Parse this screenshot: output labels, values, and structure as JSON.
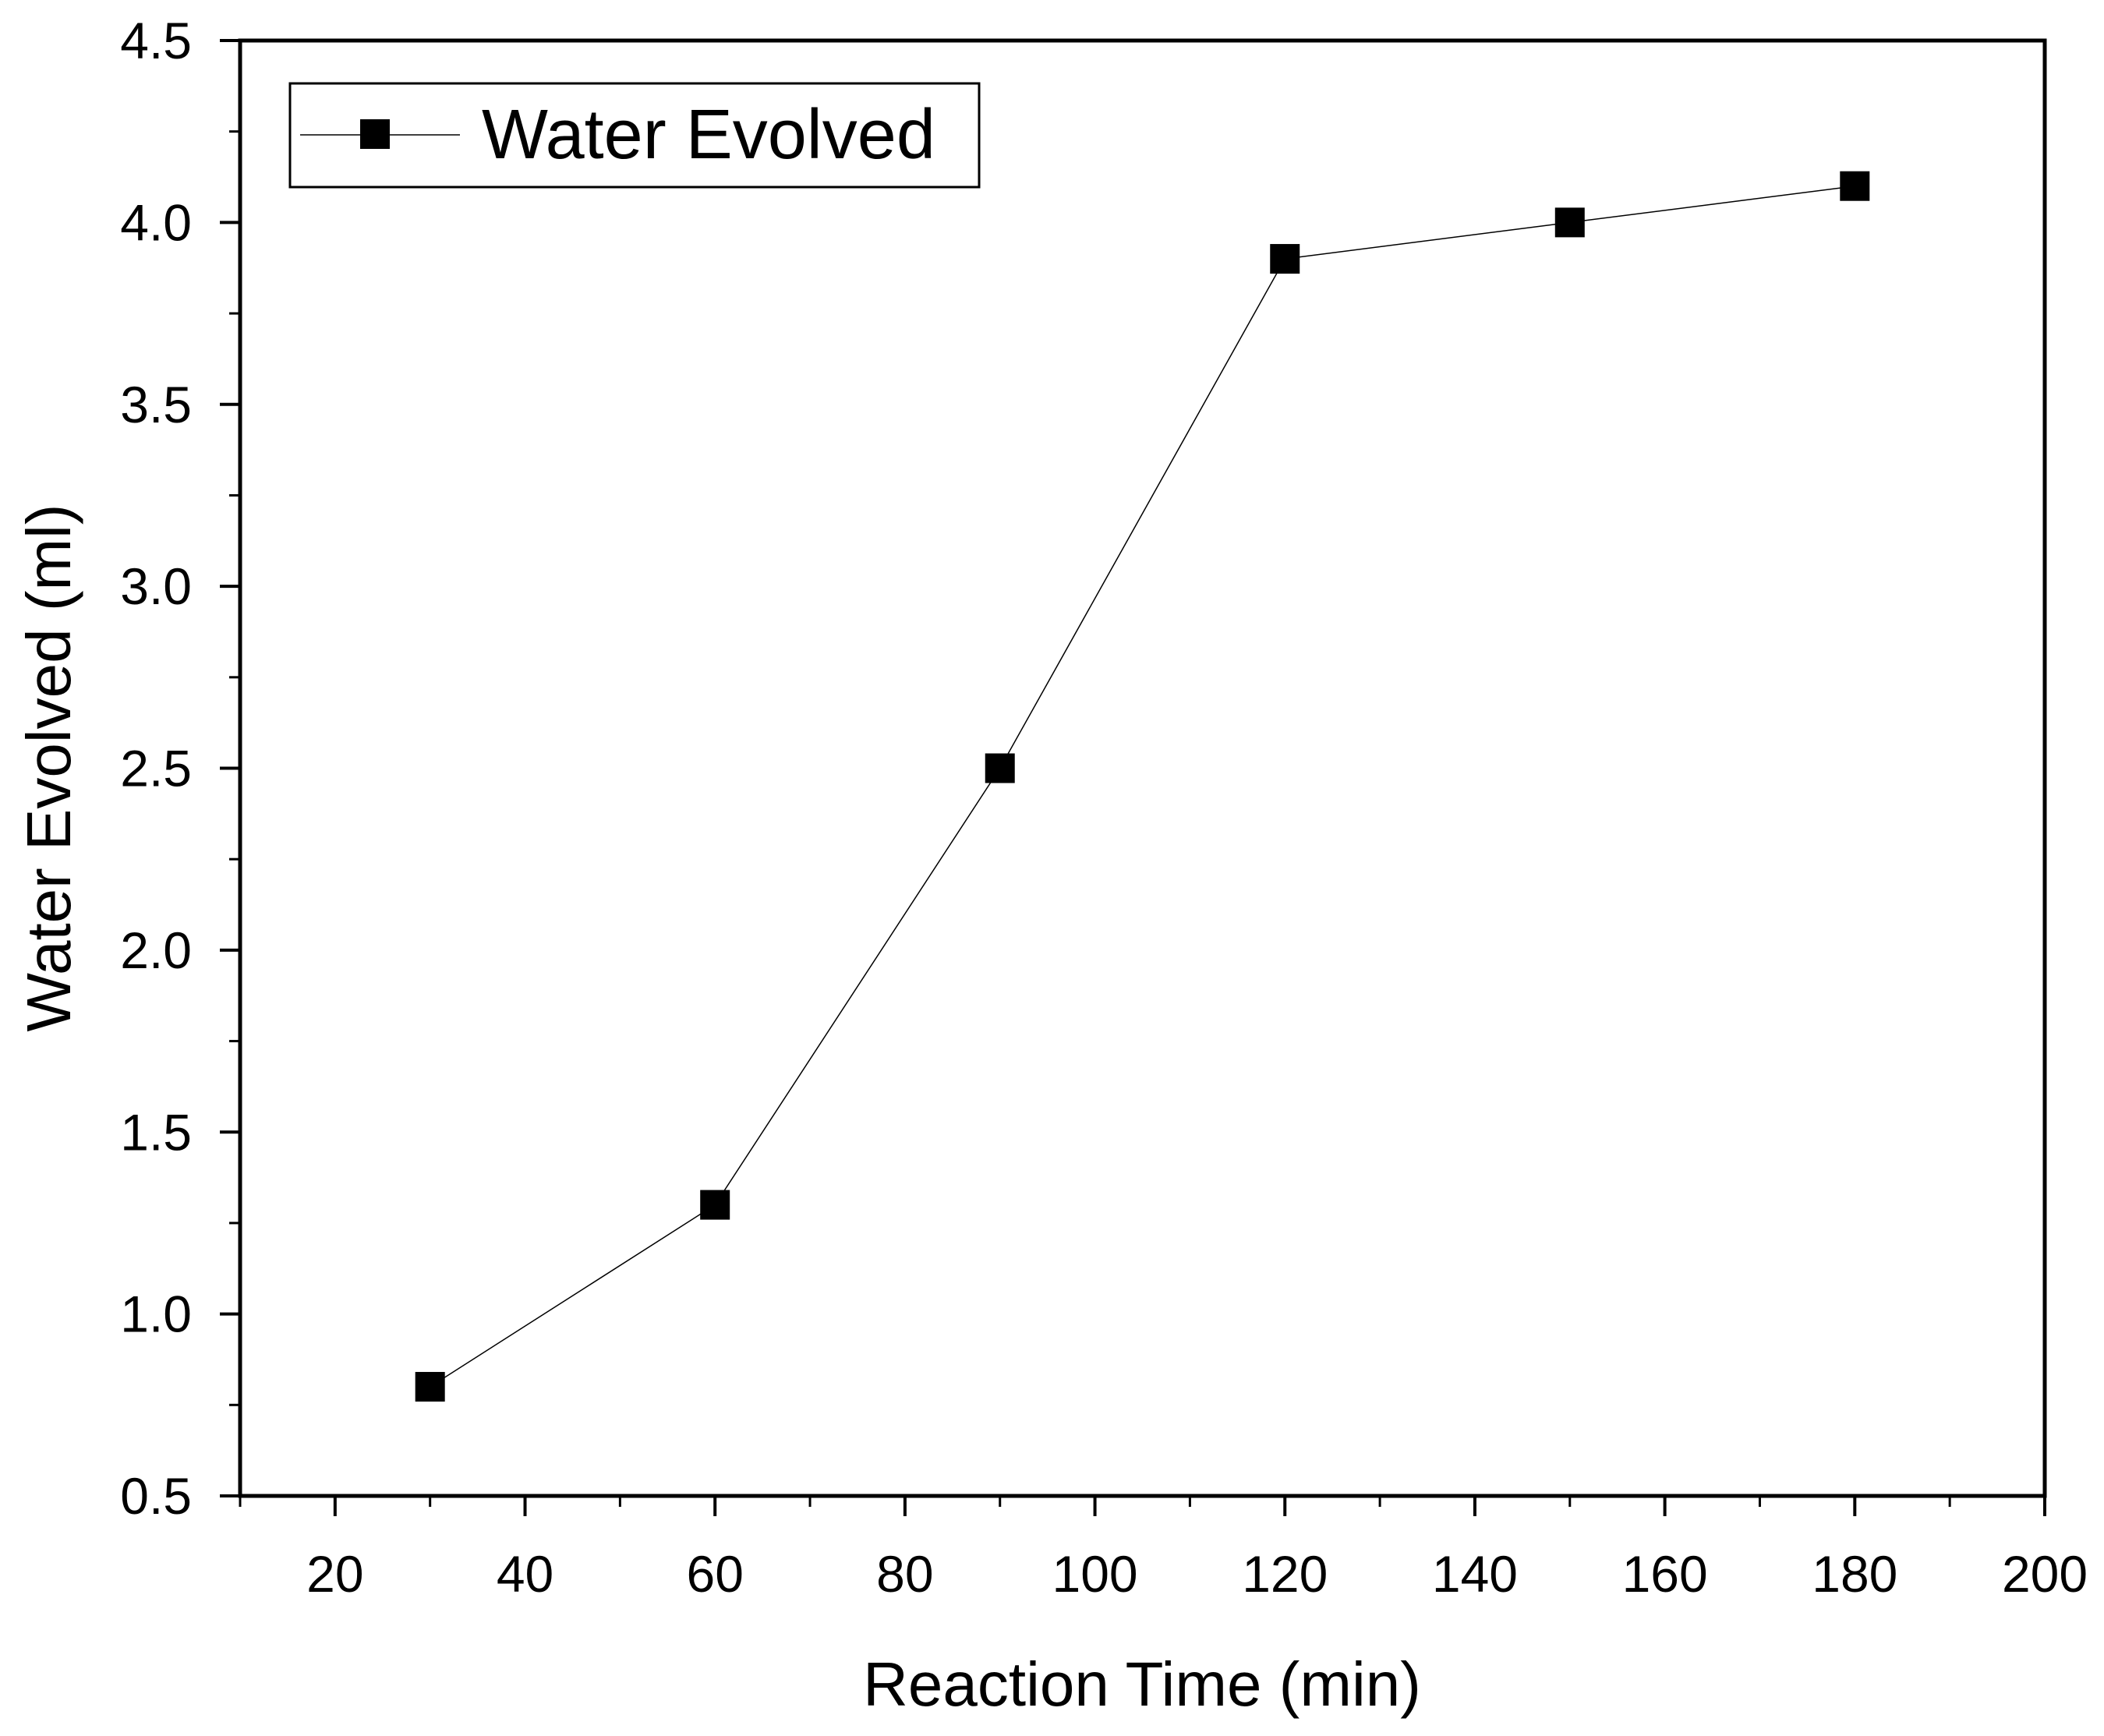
{
  "chart_data": {
    "type": "line",
    "title": "",
    "xlabel": "Reaction Time (min)",
    "ylabel": "Water Evolved (ml)",
    "xlim": [
      10,
      200
    ],
    "ylim": [
      0.5,
      4.5
    ],
    "x_ticks": [
      20,
      40,
      60,
      80,
      100,
      120,
      140,
      160,
      180,
      200
    ],
    "x_tick_labels": [
      "20",
      "40",
      "60",
      "80",
      "100",
      "120",
      "140",
      "160",
      "180",
      "200"
    ],
    "y_ticks": [
      0.5,
      1.0,
      1.5,
      2.0,
      2.5,
      3.0,
      3.5,
      4.0,
      4.5
    ],
    "y_tick_labels": [
      "0.5",
      "1.0",
      "1.5",
      "2.0",
      "2.5",
      "3.0",
      "3.5",
      "4.0",
      "4.5"
    ],
    "grid": false,
    "legend_position": "top-left",
    "series": [
      {
        "name": "Water Evolved",
        "x": [
          30,
          60,
          90,
          120,
          150,
          180
        ],
        "values": [
          0.8,
          1.3,
          2.5,
          3.9,
          4.0,
          4.1
        ],
        "marker": "square",
        "color": "#000000"
      }
    ]
  }
}
